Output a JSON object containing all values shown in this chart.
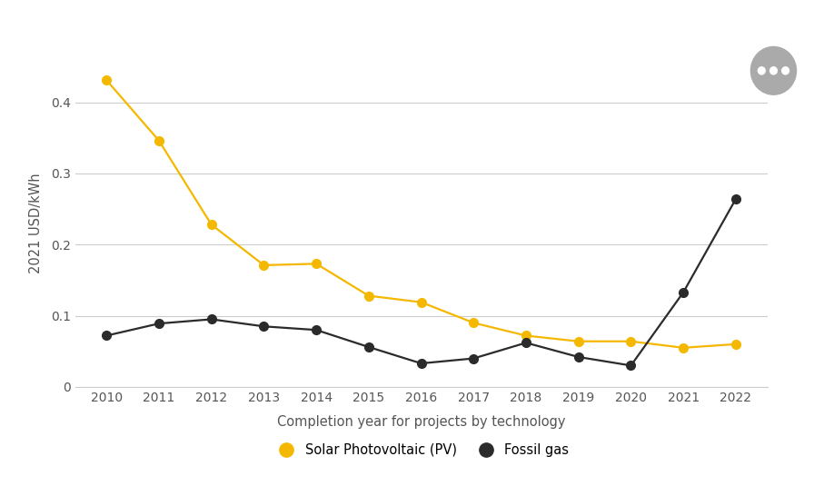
{
  "years": [
    2010,
    2011,
    2012,
    2013,
    2014,
    2015,
    2016,
    2017,
    2018,
    2019,
    2020,
    2021,
    2022
  ],
  "solar_pv": [
    0.431,
    0.346,
    0.228,
    0.171,
    0.173,
    0.128,
    0.119,
    0.09,
    0.072,
    0.064,
    0.064,
    0.055,
    0.06
  ],
  "fossil_gas": [
    0.072,
    0.089,
    0.095,
    0.085,
    0.08,
    0.056,
    0.033,
    0.04,
    0.062,
    0.042,
    0.03,
    0.133,
    0.264
  ],
  "solar_color": "#F5B800",
  "fossil_color": "#2B2B2B",
  "bg_color": "#FFFFFF",
  "grid_color": "#CCCCCC",
  "ylabel": "2021 USD/kWh",
  "xlabel": "Completion year for projects by technology",
  "ylim": [
    0,
    0.46
  ],
  "yticks": [
    0,
    0.1,
    0.2,
    0.3,
    0.4
  ],
  "legend_solar": "Solar Photovoltaic (PV)",
  "legend_fossil": "Fossil gas",
  "marker_size": 7,
  "line_width": 1.6,
  "axis_fontsize": 10.5,
  "tick_fontsize": 10,
  "legend_fontsize": 10.5,
  "button_color": "#AAAAAA",
  "dot_color": "#FFFFFF"
}
